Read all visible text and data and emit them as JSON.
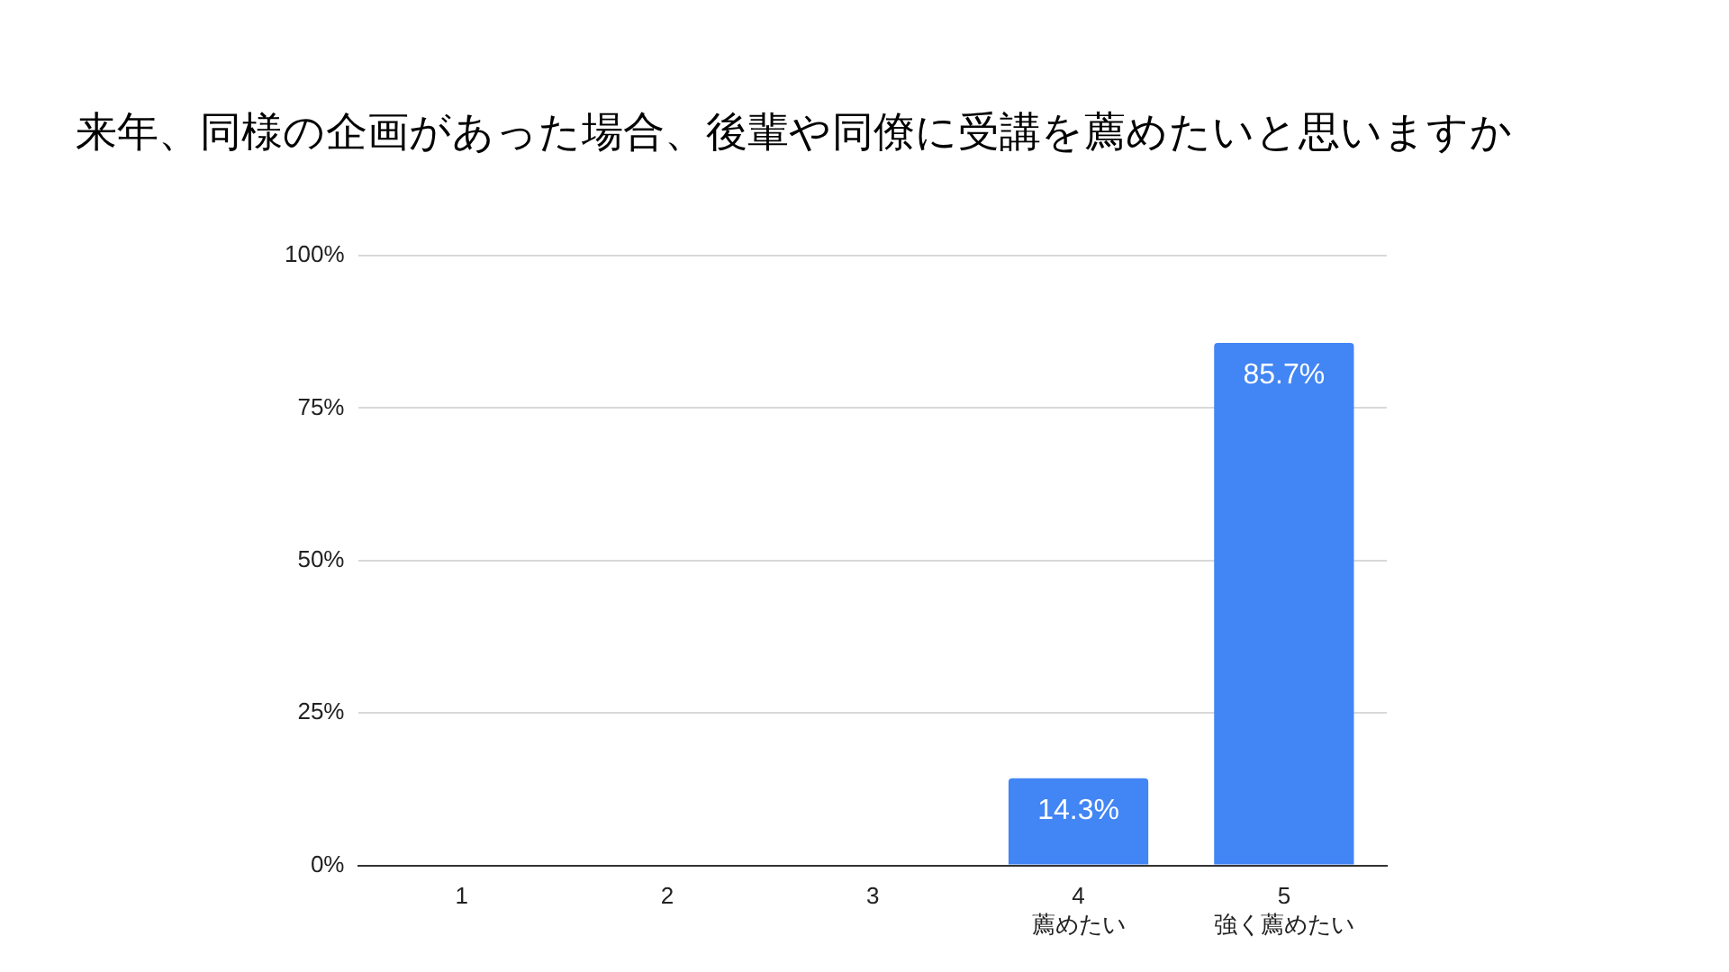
{
  "chart_data": {
    "type": "bar",
    "title": "来年、同様の企画があった場合、後輩や同僚に受講を薦めたいと思いますか",
    "categories": [
      "1",
      "2",
      "3",
      "4\n薦めたい",
      "5\n強く薦めたい"
    ],
    "values": [
      0,
      0,
      0,
      14.3,
      85.7
    ],
    "value_labels": [
      null,
      null,
      null,
      "14.3%",
      "85.7%"
    ],
    "color": "#4285f4",
    "ylim": [
      0,
      100
    ],
    "yticks": [
      {
        "value": 0,
        "label": "0%"
      },
      {
        "value": 25,
        "label": "25%"
      },
      {
        "value": 50,
        "label": "50%"
      },
      {
        "value": 75,
        "label": "75%"
      },
      {
        "value": 100,
        "label": "100%"
      }
    ],
    "grid": "y",
    "legend": false
  }
}
